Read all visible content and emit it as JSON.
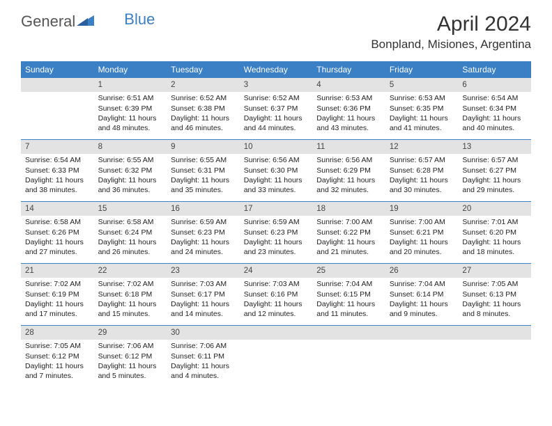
{
  "logo": {
    "part1": "General",
    "part2": "Blue"
  },
  "title": "April 2024",
  "location": "Bonpland, Misiones, Argentina",
  "colors": {
    "header_bg": "#3b7fc4",
    "daynum_bg": "#e3e3e3",
    "text": "#222222",
    "page_bg": "#ffffff"
  },
  "daynames": [
    "Sunday",
    "Monday",
    "Tuesday",
    "Wednesday",
    "Thursday",
    "Friday",
    "Saturday"
  ],
  "weeks": [
    [
      null,
      {
        "n": "1",
        "sr": "Sunrise: 6:51 AM",
        "ss": "Sunset: 6:39 PM",
        "d1": "Daylight: 11 hours",
        "d2": "and 48 minutes."
      },
      {
        "n": "2",
        "sr": "Sunrise: 6:52 AM",
        "ss": "Sunset: 6:38 PM",
        "d1": "Daylight: 11 hours",
        "d2": "and 46 minutes."
      },
      {
        "n": "3",
        "sr": "Sunrise: 6:52 AM",
        "ss": "Sunset: 6:37 PM",
        "d1": "Daylight: 11 hours",
        "d2": "and 44 minutes."
      },
      {
        "n": "4",
        "sr": "Sunrise: 6:53 AM",
        "ss": "Sunset: 6:36 PM",
        "d1": "Daylight: 11 hours",
        "d2": "and 43 minutes."
      },
      {
        "n": "5",
        "sr": "Sunrise: 6:53 AM",
        "ss": "Sunset: 6:35 PM",
        "d1": "Daylight: 11 hours",
        "d2": "and 41 minutes."
      },
      {
        "n": "6",
        "sr": "Sunrise: 6:54 AM",
        "ss": "Sunset: 6:34 PM",
        "d1": "Daylight: 11 hours",
        "d2": "and 40 minutes."
      }
    ],
    [
      {
        "n": "7",
        "sr": "Sunrise: 6:54 AM",
        "ss": "Sunset: 6:33 PM",
        "d1": "Daylight: 11 hours",
        "d2": "and 38 minutes."
      },
      {
        "n": "8",
        "sr": "Sunrise: 6:55 AM",
        "ss": "Sunset: 6:32 PM",
        "d1": "Daylight: 11 hours",
        "d2": "and 36 minutes."
      },
      {
        "n": "9",
        "sr": "Sunrise: 6:55 AM",
        "ss": "Sunset: 6:31 PM",
        "d1": "Daylight: 11 hours",
        "d2": "and 35 minutes."
      },
      {
        "n": "10",
        "sr": "Sunrise: 6:56 AM",
        "ss": "Sunset: 6:30 PM",
        "d1": "Daylight: 11 hours",
        "d2": "and 33 minutes."
      },
      {
        "n": "11",
        "sr": "Sunrise: 6:56 AM",
        "ss": "Sunset: 6:29 PM",
        "d1": "Daylight: 11 hours",
        "d2": "and 32 minutes."
      },
      {
        "n": "12",
        "sr": "Sunrise: 6:57 AM",
        "ss": "Sunset: 6:28 PM",
        "d1": "Daylight: 11 hours",
        "d2": "and 30 minutes."
      },
      {
        "n": "13",
        "sr": "Sunrise: 6:57 AM",
        "ss": "Sunset: 6:27 PM",
        "d1": "Daylight: 11 hours",
        "d2": "and 29 minutes."
      }
    ],
    [
      {
        "n": "14",
        "sr": "Sunrise: 6:58 AM",
        "ss": "Sunset: 6:26 PM",
        "d1": "Daylight: 11 hours",
        "d2": "and 27 minutes."
      },
      {
        "n": "15",
        "sr": "Sunrise: 6:58 AM",
        "ss": "Sunset: 6:24 PM",
        "d1": "Daylight: 11 hours",
        "d2": "and 26 minutes."
      },
      {
        "n": "16",
        "sr": "Sunrise: 6:59 AM",
        "ss": "Sunset: 6:23 PM",
        "d1": "Daylight: 11 hours",
        "d2": "and 24 minutes."
      },
      {
        "n": "17",
        "sr": "Sunrise: 6:59 AM",
        "ss": "Sunset: 6:23 PM",
        "d1": "Daylight: 11 hours",
        "d2": "and 23 minutes."
      },
      {
        "n": "18",
        "sr": "Sunrise: 7:00 AM",
        "ss": "Sunset: 6:22 PM",
        "d1": "Daylight: 11 hours",
        "d2": "and 21 minutes."
      },
      {
        "n": "19",
        "sr": "Sunrise: 7:00 AM",
        "ss": "Sunset: 6:21 PM",
        "d1": "Daylight: 11 hours",
        "d2": "and 20 minutes."
      },
      {
        "n": "20",
        "sr": "Sunrise: 7:01 AM",
        "ss": "Sunset: 6:20 PM",
        "d1": "Daylight: 11 hours",
        "d2": "and 18 minutes."
      }
    ],
    [
      {
        "n": "21",
        "sr": "Sunrise: 7:02 AM",
        "ss": "Sunset: 6:19 PM",
        "d1": "Daylight: 11 hours",
        "d2": "and 17 minutes."
      },
      {
        "n": "22",
        "sr": "Sunrise: 7:02 AM",
        "ss": "Sunset: 6:18 PM",
        "d1": "Daylight: 11 hours",
        "d2": "and 15 minutes."
      },
      {
        "n": "23",
        "sr": "Sunrise: 7:03 AM",
        "ss": "Sunset: 6:17 PM",
        "d1": "Daylight: 11 hours",
        "d2": "and 14 minutes."
      },
      {
        "n": "24",
        "sr": "Sunrise: 7:03 AM",
        "ss": "Sunset: 6:16 PM",
        "d1": "Daylight: 11 hours",
        "d2": "and 12 minutes."
      },
      {
        "n": "25",
        "sr": "Sunrise: 7:04 AM",
        "ss": "Sunset: 6:15 PM",
        "d1": "Daylight: 11 hours",
        "d2": "and 11 minutes."
      },
      {
        "n": "26",
        "sr": "Sunrise: 7:04 AM",
        "ss": "Sunset: 6:14 PM",
        "d1": "Daylight: 11 hours",
        "d2": "and 9 minutes."
      },
      {
        "n": "27",
        "sr": "Sunrise: 7:05 AM",
        "ss": "Sunset: 6:13 PM",
        "d1": "Daylight: 11 hours",
        "d2": "and 8 minutes."
      }
    ],
    [
      {
        "n": "28",
        "sr": "Sunrise: 7:05 AM",
        "ss": "Sunset: 6:12 PM",
        "d1": "Daylight: 11 hours",
        "d2": "and 7 minutes."
      },
      {
        "n": "29",
        "sr": "Sunrise: 7:06 AM",
        "ss": "Sunset: 6:12 PM",
        "d1": "Daylight: 11 hours",
        "d2": "and 5 minutes."
      },
      {
        "n": "30",
        "sr": "Sunrise: 7:06 AM",
        "ss": "Sunset: 6:11 PM",
        "d1": "Daylight: 11 hours",
        "d2": "and 4 minutes."
      },
      null,
      null,
      null,
      null
    ]
  ]
}
